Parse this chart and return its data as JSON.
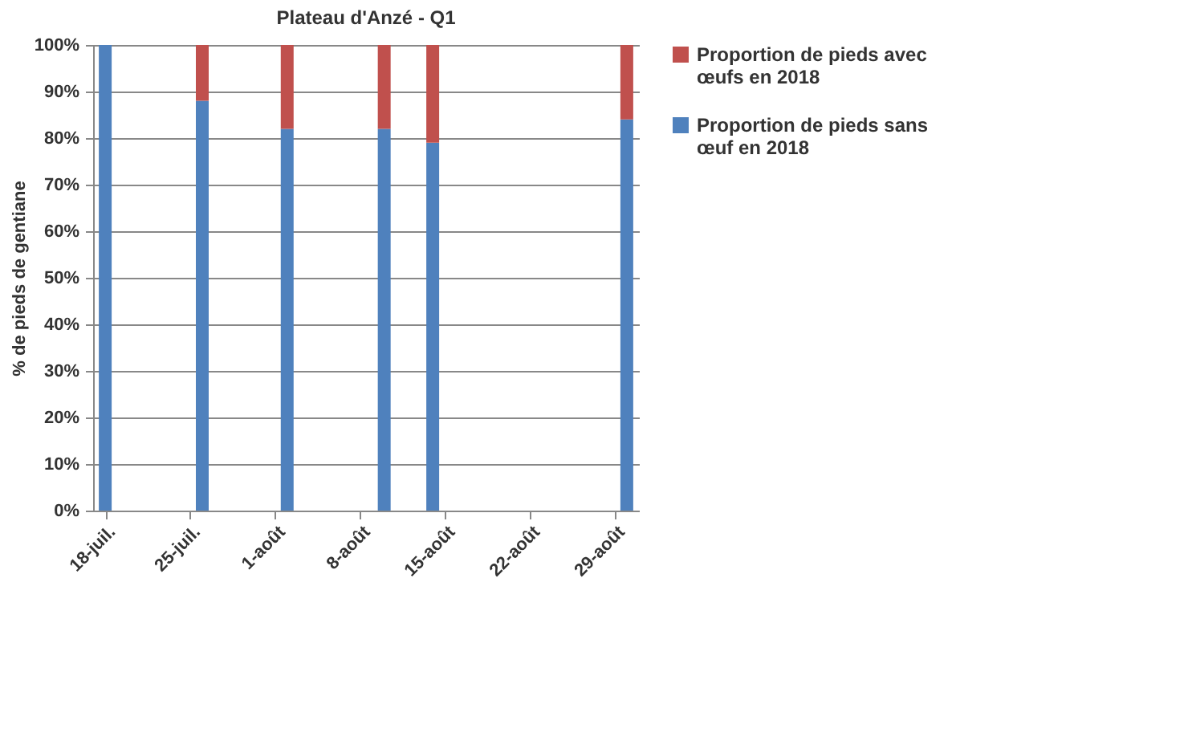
{
  "chart_data": {
    "type": "bar",
    "title": "Plateau d'Anzé - Q1",
    "ylabel": "% de pieds de gentiane",
    "x": [
      "2018-07-18",
      "2018-07-26",
      "2018-08-02",
      "2018-08-10",
      "2018-08-14",
      "2018-08-30"
    ],
    "stacked": true,
    "series": [
      {
        "name": "Proportion de pieds sans œuf en 2018",
        "color": "#4f81bd",
        "values": [
          100,
          88,
          82,
          82,
          79,
          84
        ]
      },
      {
        "name": "Proportion de pieds avec œufs en 2018",
        "color": "#c0504d",
        "values": [
          0,
          12,
          18,
          18,
          21,
          16
        ]
      }
    ],
    "xlim": [
      "2018-07-17",
      "2018-08-31"
    ],
    "xticks": [
      {
        "value": "2018-07-18",
        "label": "18-juil."
      },
      {
        "value": "2018-07-25",
        "label": "25-juil."
      },
      {
        "value": "2018-08-01",
        "label": "1-août"
      },
      {
        "value": "2018-08-08",
        "label": "8-août"
      },
      {
        "value": "2018-08-15",
        "label": "15-août"
      },
      {
        "value": "2018-08-22",
        "label": "22-août"
      },
      {
        "value": "2018-08-29",
        "label": "29-août"
      }
    ],
    "ylim": [
      0,
      100
    ],
    "yticks": [
      {
        "value": 0,
        "label": "0%"
      },
      {
        "value": 10,
        "label": "10%"
      },
      {
        "value": 20,
        "label": "20%"
      },
      {
        "value": 30,
        "label": "30%"
      },
      {
        "value": 40,
        "label": "40%"
      },
      {
        "value": 50,
        "label": "50%"
      },
      {
        "value": 60,
        "label": "60%"
      },
      {
        "value": 70,
        "label": "70%"
      },
      {
        "value": 80,
        "label": "80%"
      },
      {
        "value": 90,
        "label": "90%"
      },
      {
        "value": 100,
        "label": "100%"
      }
    ],
    "grid": "y",
    "legend": "right"
  }
}
